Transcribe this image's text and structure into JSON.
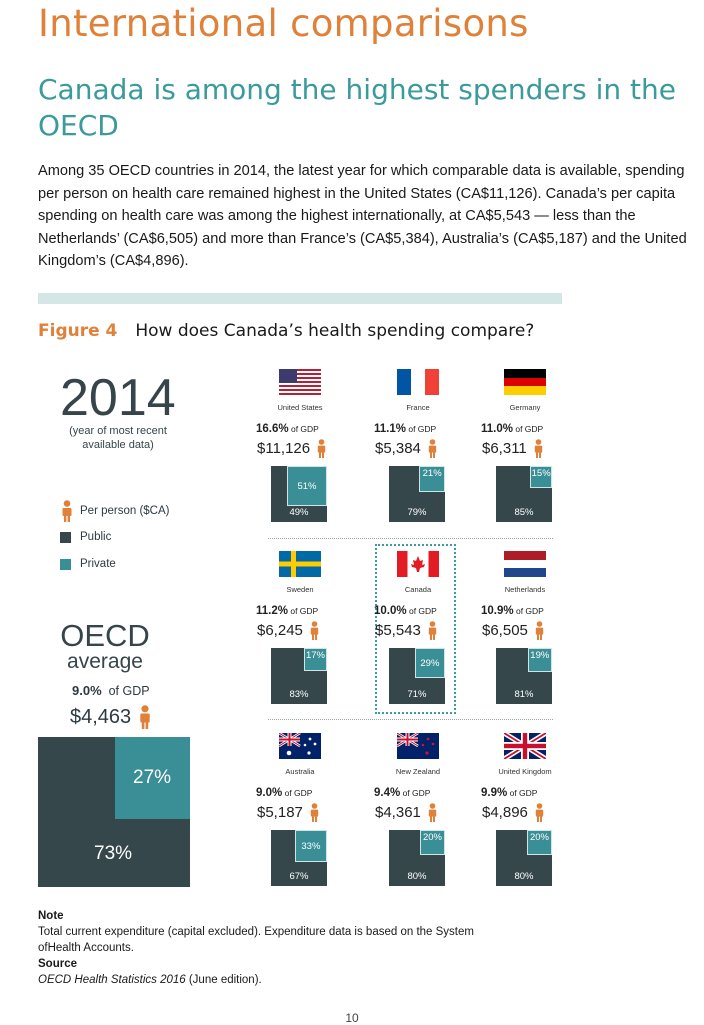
{
  "header": {
    "section_title": "International comparisons",
    "subtitle": "Canada is among the highest spenders in the OECD",
    "intro": "Among 35 OECD countries in 2014, the latest year for which comparable data is available, spending per person on health care remained highest in the United States (CA$11,126). Canada’s per capita spending on health care was among the highest internationally, at CA$5,543 — less than the Netherlands’ (CA$6,505) and more than France’s (CA$5,384), Australia’s (CA$5,187) and the United Kingdom’s (CA$4,896)."
  },
  "figure": {
    "label": "Figure 4",
    "title": "How does Canada’s health spending compare?",
    "year": "2014",
    "year_note": "(year of most recent available data)",
    "legend": {
      "per_person": "Per person ($CA)",
      "public": "Public",
      "private": "Private"
    },
    "oecd": {
      "title": "OECD",
      "subtitle": "average",
      "gdp_pct": "9.0%",
      "gdp_suffix": "of GDP",
      "amount": "$4,463",
      "public": "73%",
      "private": "27%"
    }
  },
  "colors": {
    "accent": "#e0813a",
    "teal_heading": "#3a9a9c",
    "public": "#36474c",
    "private": "#3a8e96"
  },
  "chart_data": {
    "type": "treemap",
    "title": "How does Canada’s health spending compare?",
    "year": 2014,
    "countries": [
      {
        "name": "United States",
        "gdp": "16.6%",
        "amount": "$11,126",
        "public": 49,
        "private": 51
      },
      {
        "name": "France",
        "gdp": "11.1%",
        "amount": "$5,384",
        "public": 79,
        "private": 21
      },
      {
        "name": "Germany",
        "gdp": "11.0%",
        "amount": "$6,311",
        "public": 85,
        "private": 15
      },
      {
        "name": "Sweden",
        "gdp": "11.2%",
        "amount": "$6,245",
        "public": 83,
        "private": 17
      },
      {
        "name": "Canada",
        "gdp": "10.0%",
        "amount": "$5,543",
        "public": 71,
        "private": 29
      },
      {
        "name": "Netherlands",
        "gdp": "10.9%",
        "amount": "$6,505",
        "public": 81,
        "private": 19
      },
      {
        "name": "Australia",
        "gdp": "9.0%",
        "amount": "$5,187",
        "public": 67,
        "private": 33
      },
      {
        "name": "New Zealand",
        "gdp": "9.4%",
        "amount": "$4,361",
        "public": 80,
        "private": 20
      },
      {
        "name": "United Kingdom",
        "gdp": "9.9%",
        "amount": "$4,896",
        "public": 80,
        "private": 20
      }
    ],
    "gdp_suffix": "of GDP",
    "oecd_average": {
      "gdp": "9.0%",
      "amount": "$4,463",
      "public": 73,
      "private": 27
    }
  },
  "notes": {
    "note_heading": "Note",
    "note_text": "Total current expenditure (capital excluded). Expenditure data is based on the System",
    "note_text2": "ofHealth Accounts.",
    "source_heading": "Source",
    "source_italic": "OECD Health Statistics 2016",
    "source_rest": " (June edition)."
  },
  "page_number": "10"
}
